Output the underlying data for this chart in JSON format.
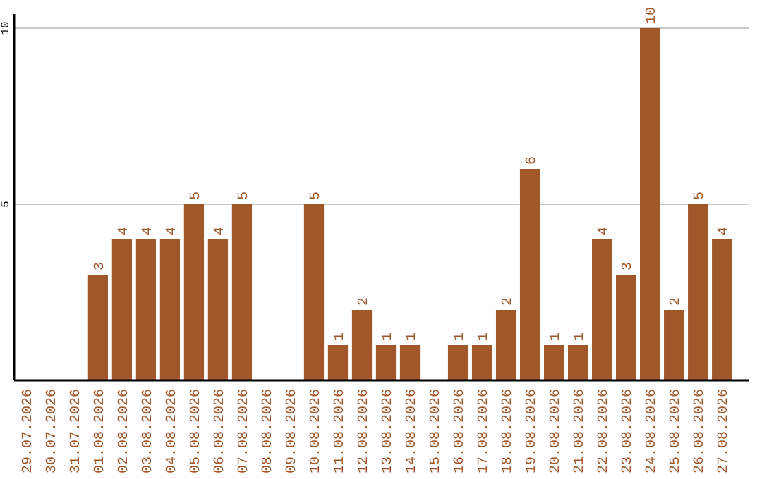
{
  "chart_data": {
    "type": "bar",
    "categories": [
      "29.07.2026",
      "30.07.2026",
      "31.07.2026",
      "01.08.2026",
      "02.08.2026",
      "03.08.2026",
      "04.08.2026",
      "05.08.2026",
      "06.08.2026",
      "07.08.2026",
      "08.08.2026",
      "09.08.2026",
      "10.08.2026",
      "11.08.2026",
      "12.08.2026",
      "13.08.2026",
      "14.08.2026",
      "15.08.2026",
      "16.08.2026",
      "17.08.2026",
      "18.08.2026",
      "19.08.2026",
      "20.08.2026",
      "21.08.2026",
      "22.08.2026",
      "23.08.2026",
      "24.08.2026",
      "25.08.2026",
      "26.08.2026",
      "27.08.2026"
    ],
    "values": [
      null,
      null,
      null,
      3,
      4,
      4,
      4,
      5,
      4,
      5,
      null,
      null,
      5,
      1,
      2,
      1,
      1,
      null,
      1,
      1,
      2,
      6,
      1,
      1,
      4,
      3,
      10,
      2,
      5,
      4
    ],
    "color": "#a0582a",
    "ylim": [
      0,
      10.4
    ],
    "yticks": [
      5,
      10
    ],
    "grid": "y",
    "data_labels": true
  }
}
